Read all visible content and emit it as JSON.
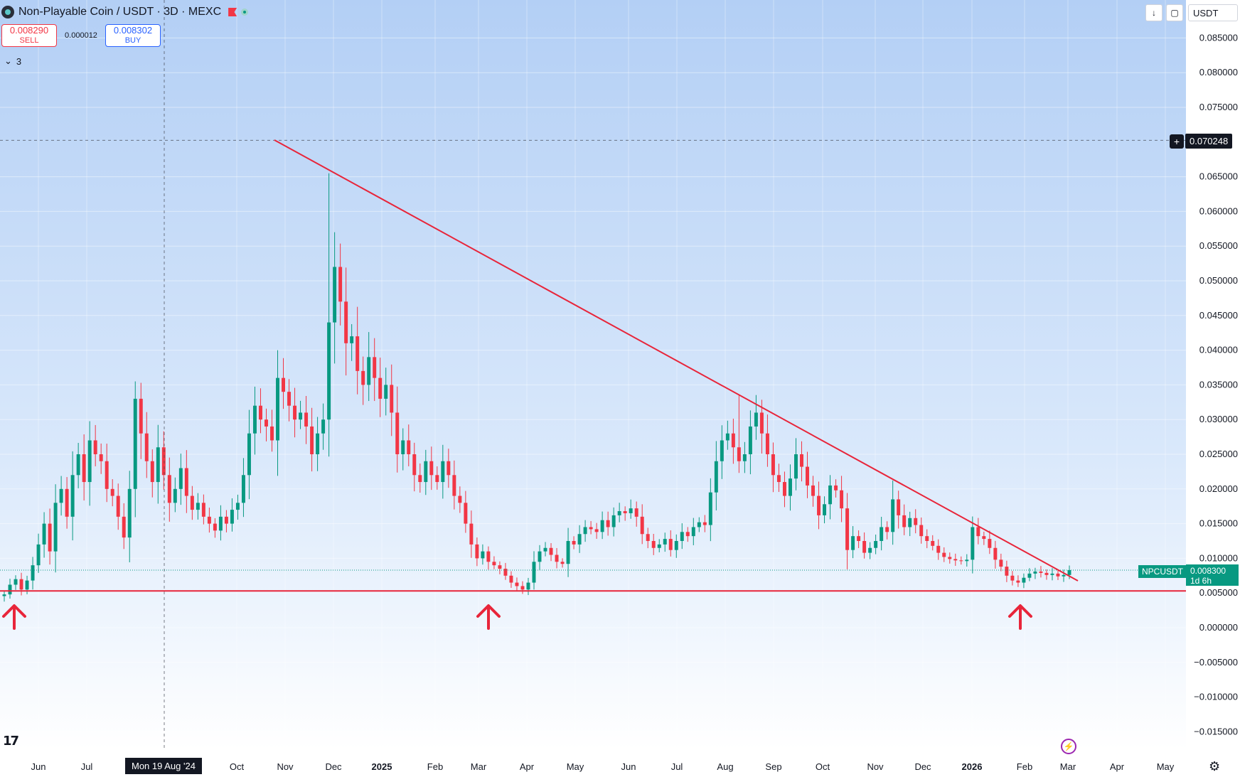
{
  "header": {
    "title": "Non-Playable Coin / USDT · 3D · MEXC",
    "sell": {
      "price": "0.008290",
      "label": "SELL"
    },
    "spread": "0.000012",
    "buy": {
      "price": "0.008302",
      "label": "BUY"
    },
    "indicators_count": "3"
  },
  "toolbar": {
    "currency": "USDT"
  },
  "crosshair": {
    "price_label": "0.070248",
    "date_label": "Mon 19 Aug '24"
  },
  "current": {
    "symbol": "NPCUSDT",
    "price": "0.008300",
    "countdown": "1d 6h"
  },
  "colors": {
    "up": "#089981",
    "down": "#f23645",
    "annotation": "#e8253a",
    "bg_top": "#b3cff5",
    "bg_bottom": "#ffffff"
  },
  "icons": [
    "symbol-icon",
    "flag-icon",
    "live-dot-icon",
    "download-icon",
    "screenshot-icon",
    "crosshair-plus-icon",
    "tradingview-logo",
    "bolt-icon",
    "gear-icon",
    "arrow-up-icon"
  ],
  "chart_data": {
    "type": "candlestick",
    "title": "Non-Playable Coin / USDT · 3D · MEXC",
    "y_ticks": [
      0.085,
      0.08,
      0.075,
      0.065,
      0.06,
      0.055,
      0.05,
      0.045,
      0.04,
      0.035,
      0.03,
      0.025,
      0.02,
      0.015,
      0.01,
      0.005,
      0,
      -0.005,
      -0.01,
      -0.015
    ],
    "y_tick_labels": [
      "0.085000",
      "0.080000",
      "0.075000",
      "0.065000",
      "0.060000",
      "0.055000",
      "0.050000",
      "0.045000",
      "0.040000",
      "0.035000",
      "0.030000",
      "0.025000",
      "0.020000",
      "0.015000",
      "0.010000",
      "0.005000",
      "0.000000",
      "−0.005000",
      "−0.010000",
      "−0.015000"
    ],
    "ylim": [
      -0.018,
      0.088
    ],
    "x_labels": [
      "Jun",
      "Jul",
      "Oct",
      "Nov",
      "Dec",
      "2025",
      "Feb",
      "Mar",
      "Apr",
      "May",
      "Jun",
      "Jul",
      "Aug",
      "Sep",
      "Oct",
      "Nov",
      "Dec",
      "2026",
      "Feb",
      "Mar",
      "Apr",
      "May"
    ],
    "support_level": 0.0053,
    "series_close": [
      0.0048,
      0.0062,
      0.007,
      0.0055,
      0.0068,
      0.009,
      0.012,
      0.015,
      0.011,
      0.018,
      0.02,
      0.016,
      0.022,
      0.025,
      0.021,
      0.027,
      0.025,
      0.024,
      0.02,
      0.019,
      0.016,
      0.013,
      0.02,
      0.033,
      0.028,
      0.024,
      0.021,
      0.026,
      0.022,
      0.018,
      0.02,
      0.023,
      0.019,
      0.017,
      0.018,
      0.016,
      0.015,
      0.014,
      0.016,
      0.015,
      0.017,
      0.018,
      0.022,
      0.028,
      0.032,
      0.03,
      0.029,
      0.027,
      0.036,
      0.034,
      0.032,
      0.03,
      0.031,
      0.029,
      0.025,
      0.028,
      0.03,
      0.044,
      0.052,
      0.047,
      0.041,
      0.042,
      0.037,
      0.035,
      0.039,
      0.036,
      0.033,
      0.035,
      0.031,
      0.025,
      0.027,
      0.025,
      0.022,
      0.021,
      0.024,
      0.022,
      0.021,
      0.024,
      0.022,
      0.019,
      0.018,
      0.015,
      0.012,
      0.01,
      0.011,
      0.0095,
      0.009,
      0.0085,
      0.0075,
      0.0065,
      0.006,
      0.0055,
      0.0065,
      0.0095,
      0.011,
      0.0115,
      0.0105,
      0.0095,
      0.0092,
      0.0125,
      0.012,
      0.0135,
      0.0145,
      0.0142,
      0.0138,
      0.0155,
      0.0145,
      0.0162,
      0.0168,
      0.0165,
      0.0172,
      0.016,
      0.0135,
      0.0125,
      0.0115,
      0.012,
      0.0128,
      0.0112,
      0.0125,
      0.0138,
      0.0132,
      0.0145,
      0.0152,
      0.0148,
      0.0195,
      0.024,
      0.027,
      0.028,
      0.026,
      0.024,
      0.025,
      0.029,
      0.031,
      0.028,
      0.025,
      0.022,
      0.021,
      0.019,
      0.0215,
      0.025,
      0.0232,
      0.0205,
      0.019,
      0.0162,
      0.0178,
      0.0205,
      0.0198,
      0.0172,
      0.0112,
      0.0132,
      0.0125,
      0.0108,
      0.0115,
      0.0125,
      0.0145,
      0.0138,
      0.0185,
      0.0162,
      0.0145,
      0.0158,
      0.0148,
      0.0132,
      0.0125,
      0.0118,
      0.0108,
      0.0102,
      0.0099,
      0.0097,
      0.0096,
      0.0098,
      0.0145,
      0.0132,
      0.0128,
      0.0115,
      0.0098,
      0.0088,
      0.0075,
      0.0068,
      0.0065,
      0.0072,
      0.0078,
      0.0081,
      0.0079,
      0.0076,
      0.0078,
      0.0074,
      0.0076,
      0.0083
    ]
  }
}
